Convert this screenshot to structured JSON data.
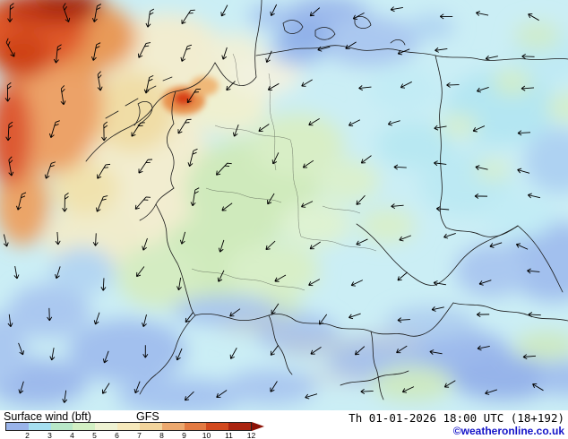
{
  "map": {
    "background_color": "#cbeef5",
    "border_color": "#1a1a1a",
    "barb_color": "#000000"
  },
  "footer": {
    "product_label": "Surface wind (bft)",
    "model_label": "GFS",
    "datetime_label": "Th 01-01-2026 18:00 UTC (18+192)",
    "copyright_label": "©weatheronline.co.uk",
    "copyright_color": "#1414c8"
  },
  "legend": {
    "unit": "bft",
    "values": [
      "2",
      "3",
      "4",
      "5",
      "6",
      "7",
      "8",
      "9",
      "10",
      "11",
      "12"
    ],
    "colors": [
      "#9ab4ea",
      "#a6dff0",
      "#b8e8c8",
      "#d2f0c4",
      "#eef2d2",
      "#f6e9bc",
      "#f2d49c",
      "#eca86e",
      "#e37a42",
      "#d2491e",
      "#aa2410"
    ],
    "arrow_color": "#8c1206"
  }
}
